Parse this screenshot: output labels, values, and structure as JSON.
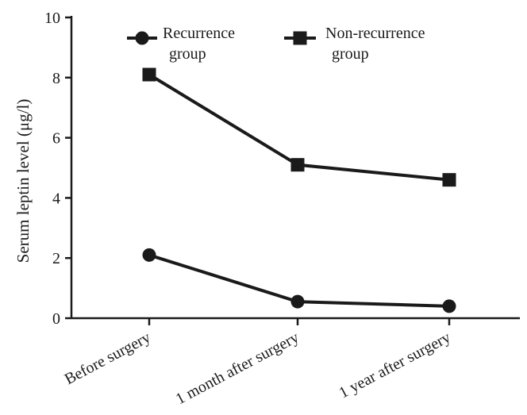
{
  "chart_data": {
    "type": "line",
    "categories": [
      "Before surgery",
      "1 month after surgery",
      "1 year after surgery"
    ],
    "series": [
      {
        "name": "Recurrence group",
        "legend_lines": [
          "Recurrence",
          "group"
        ],
        "values": [
          2.1,
          0.55,
          0.4
        ],
        "marker": "circle"
      },
      {
        "name": "Non-recurrence group",
        "legend_lines": [
          "Non-recurrence",
          "group"
        ],
        "values": [
          8.1,
          5.1,
          4.6
        ],
        "marker": "square"
      }
    ],
    "title": "",
    "xlabel": "",
    "ylabel": "Serum leptin level (μg/l)",
    "ylim": [
      0,
      10
    ],
    "yticks": [
      "0",
      "2",
      "4",
      "6",
      "8",
      "10"
    ],
    "grid": false,
    "legend_position": "top",
    "colors": {
      "series": "#1a1a1a",
      "axis": "#1a1a1a"
    }
  }
}
